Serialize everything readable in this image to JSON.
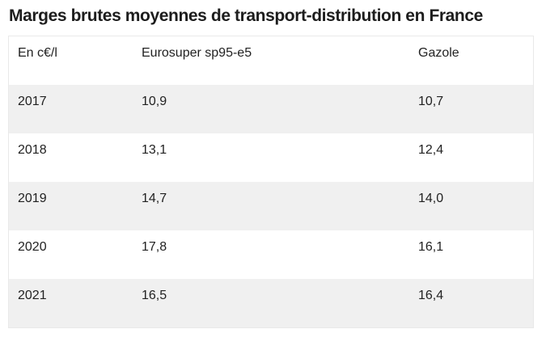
{
  "title": "Marges brutes moyennes de transport-distribution en France",
  "chart_data": {
    "type": "table",
    "title": "Marges brutes moyennes de transport-distribution en France",
    "columns": [
      "En c€/l",
      "Eurosuper sp95-e5",
      "Gazole"
    ],
    "rows": [
      [
        "2017",
        "10,9",
        "10,7"
      ],
      [
        "2018",
        "13,1",
        "12,4"
      ],
      [
        "2019",
        "14,7",
        "14,0"
      ],
      [
        "2020",
        "17,8",
        "16,1"
      ],
      [
        "2021",
        "16,5",
        "16,4"
      ]
    ],
    "categories": [
      "2017",
      "2018",
      "2019",
      "2020",
      "2021"
    ],
    "series": [
      {
        "name": "Eurosuper sp95-e5",
        "values": [
          10.9,
          13.1,
          14.7,
          17.8,
          16.5
        ]
      },
      {
        "name": "Gazole",
        "values": [
          10.7,
          12.4,
          14.0,
          16.1,
          16.4
        ]
      }
    ]
  }
}
